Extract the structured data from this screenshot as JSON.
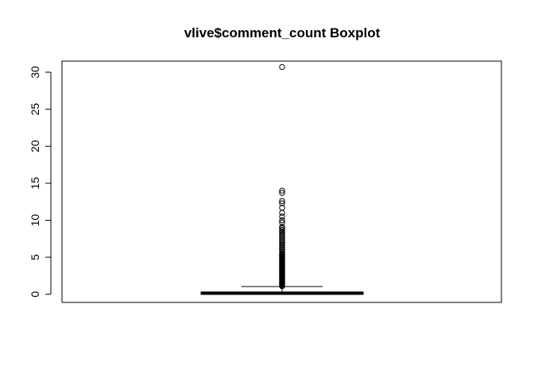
{
  "chart_data": {
    "type": "boxplot",
    "title": "vlive$comment_count Boxplot",
    "xlabel": "",
    "ylabel": "",
    "ylim": [
      -1.1,
      31.5
    ],
    "y_ticks": [
      0,
      5,
      10,
      15,
      20,
      25,
      30
    ],
    "y_tick_labels": [
      "0",
      "5",
      "10",
      "15",
      "20",
      "25",
      "30"
    ],
    "grid": false,
    "legend": "none",
    "box": {
      "min": 0,
      "q1": 0,
      "median": 0.15,
      "q3": 0.3,
      "whisker_low": 0,
      "whisker_high": 1.05
    },
    "outliers": [
      1.1,
      1.2,
      1.3,
      1.4,
      1.5,
      1.6,
      1.7,
      1.8,
      1.9,
      2.0,
      2.1,
      2.2,
      2.3,
      2.4,
      2.5,
      2.6,
      2.7,
      2.8,
      2.9,
      3.0,
      3.1,
      3.2,
      3.3,
      3.4,
      3.5,
      3.6,
      3.7,
      3.8,
      3.9,
      4.0,
      4.1,
      4.2,
      4.3,
      4.4,
      4.5,
      4.6,
      4.7,
      4.8,
      4.9,
      5.0,
      5.1,
      5.2,
      5.3,
      5.4,
      5.5,
      5.7,
      5.9,
      6.1,
      6.3,
      6.5,
      6.7,
      6.9,
      7.1,
      7.3,
      7.5,
      7.7,
      7.9,
      8.1,
      8.3,
      8.5,
      8.7,
      8.9,
      9.1,
      9.7,
      10.0,
      10.5,
      11.0,
      11.7,
      12.3,
      12.6,
      13.7,
      14.0,
      30.7
    ]
  }
}
